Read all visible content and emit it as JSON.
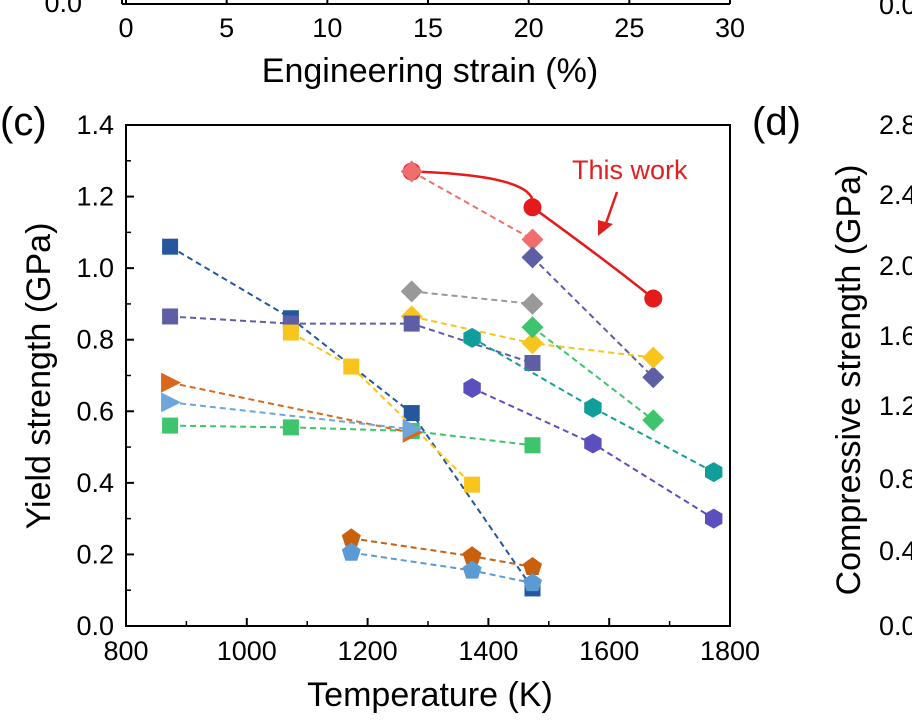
{
  "chart_data": [
    {
      "type": "line",
      "panel": "(c)",
      "xlabel": "Temperature (K)",
      "ylabel": "Yield strength (GPa)",
      "xlim": [
        800,
        1800
      ],
      "ylim": [
        0.0,
        1.4
      ],
      "xticks": [
        800,
        1000,
        1200,
        1400,
        1600,
        1800
      ],
      "yticks": [
        "0.0",
        "0.2",
        "0.4",
        "0.6",
        "0.8",
        "1.0",
        "1.2",
        "1.4"
      ],
      "grid": false,
      "annotations": [
        {
          "text": "This work",
          "color": "#e0201e"
        }
      ],
      "series": [
        {
          "marker": "circle",
          "color": "#e51b1b",
          "line": "solid",
          "x": [
            1273,
            1473,
            1673
          ],
          "y": [
            1.27,
            1.17,
            0.915
          ]
        },
        {
          "marker": "diamond",
          "color": "#f26d6d",
          "line": "dashed",
          "x": [
            1273,
            1473
          ],
          "y": [
            1.27,
            1.08
          ]
        },
        {
          "marker": "diamond",
          "color": "#5e5ea6",
          "line": "dashed",
          "x": [
            1473,
            1673
          ],
          "y": [
            1.03,
            0.695
          ]
        },
        {
          "marker": "diamond",
          "color": "#999999",
          "line": "dashed",
          "x": [
            1273,
            1473
          ],
          "y": [
            0.935,
            0.9
          ]
        },
        {
          "marker": "diamond",
          "color": "#f7c51b",
          "line": "dashed",
          "x": [
            1273,
            1473,
            1673
          ],
          "y": [
            0.865,
            0.79,
            0.75
          ]
        },
        {
          "marker": "diamond",
          "color": "#3ec46d",
          "line": "dashed",
          "x": [
            1473,
            1673
          ],
          "y": [
            0.835,
            0.575
          ]
        },
        {
          "marker": "square",
          "color": "#25579e",
          "line": "dashed",
          "x": [
            873,
            1073,
            1273,
            1473
          ],
          "y": [
            1.06,
            0.86,
            0.595,
            0.105
          ]
        },
        {
          "marker": "square",
          "color": "#5e5ea6",
          "line": "dashed",
          "x": [
            873,
            1073,
            1273,
            1473
          ],
          "y": [
            0.865,
            0.845,
            0.845,
            0.735
          ]
        },
        {
          "marker": "square",
          "color": "#f7c51b",
          "line": "dashed",
          "x": [
            1073,
            1173,
            1373
          ],
          "y": [
            0.82,
            0.725,
            0.395
          ]
        },
        {
          "marker": "square",
          "color": "#3ec46d",
          "line": "dashed",
          "x": [
            873,
            1073,
            1273,
            1473
          ],
          "y": [
            0.56,
            0.555,
            0.545,
            0.505
          ]
        },
        {
          "marker": "triangle-right",
          "color": "#d9691a",
          "line": "dashed",
          "x": [
            873,
            1273
          ],
          "y": [
            0.68,
            0.54
          ]
        },
        {
          "marker": "triangle-right",
          "color": "#6ea6dc",
          "line": "dashed",
          "x": [
            873,
            1273
          ],
          "y": [
            0.625,
            0.55
          ]
        },
        {
          "marker": "hexagon",
          "color": "#0f9e9a",
          "line": "dashed",
          "x": [
            1373,
            1573,
            1773
          ],
          "y": [
            0.805,
            0.61,
            0.43
          ]
        },
        {
          "marker": "hexagon",
          "color": "#5b4fbd",
          "line": "dashed",
          "x": [
            1373,
            1573,
            1773
          ],
          "y": [
            0.665,
            0.51,
            0.3
          ]
        },
        {
          "marker": "pentagon",
          "color": "#c8600e",
          "line": "dashed",
          "x": [
            1173,
            1373,
            1473
          ],
          "y": [
            0.245,
            0.195,
            0.165
          ]
        },
        {
          "marker": "pentagon",
          "color": "#5b9bd5",
          "line": "dashed",
          "x": [
            1173,
            1373,
            1473
          ],
          "y": [
            0.205,
            0.155,
            0.12
          ]
        }
      ]
    },
    {
      "type": "line",
      "panel": "",
      "xlabel": "Engineering strain (%)",
      "ylabel": "",
      "xlim": [
        0,
        30
      ],
      "xticks": [
        "0",
        "5",
        "10",
        "15",
        "20",
        "25",
        "30"
      ],
      "ytick_visible": "0.0",
      "grid": false
    },
    {
      "type": "line",
      "panel": "(d)",
      "ylabel": "Compressive strength (GPa)",
      "yticks_visible": [
        "0.0",
        "0.4",
        "0.8",
        "1.2",
        "1.6",
        "2.0",
        "2.4",
        "2.8"
      ],
      "grid": false
    }
  ]
}
